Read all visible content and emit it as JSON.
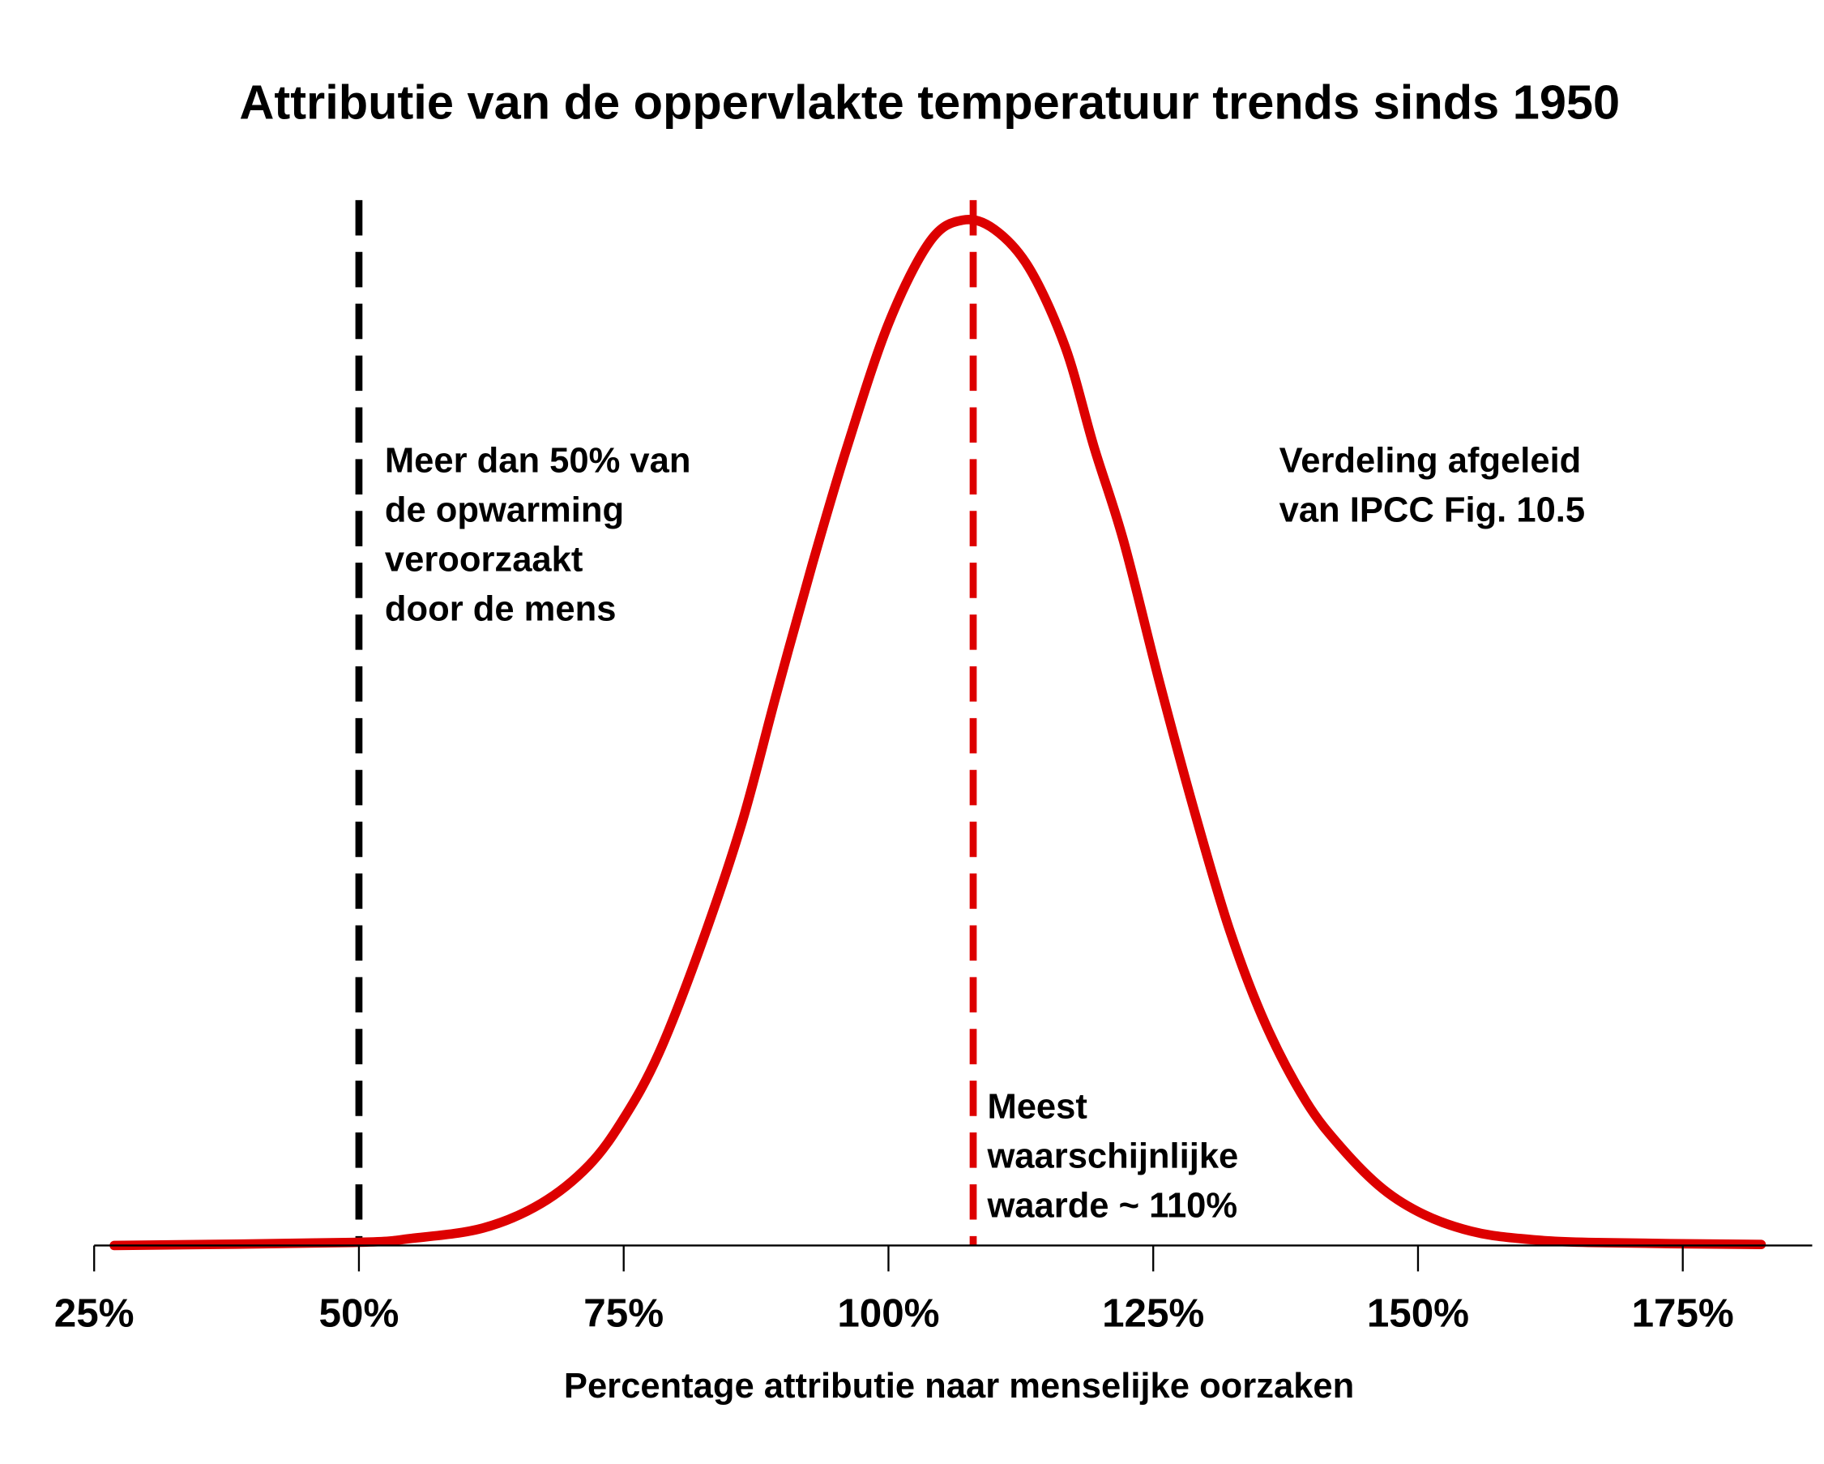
{
  "chart_data": {
    "type": "line",
    "title": "Attributie van de oppervlakte temperatuur trends sinds 1950",
    "xlabel": "Percentage attributie naar menselijke oorzaken",
    "ylabel": "",
    "xlim": [
      25,
      180
    ],
    "ylim": [
      0,
      1
    ],
    "grid": false,
    "x_ticks": [
      25,
      50,
      75,
      100,
      125,
      150,
      175
    ],
    "x_tick_labels": [
      "25%",
      "50%",
      "75%",
      "100%",
      "125%",
      "150%",
      "175%"
    ],
    "series": [
      {
        "name": "Verdeling",
        "color": "#dd0000",
        "x": [
          26.9,
          49.4,
          55,
          61.7,
          67.2,
          71.7,
          75,
          78.3,
          82.2,
          86.1,
          89.4,
          92.8,
          96.1,
          100,
          103.9,
          107,
          110,
          113.3,
          116.7,
          119.4,
          122.2,
          125.6,
          128.9,
          132.2,
          135.6,
          139.4,
          142.8,
          146.7,
          150.6,
          155,
          159.4,
          166.1,
          182.4
        ],
        "y": [
          0.0,
          0.003,
          0.007,
          0.017,
          0.041,
          0.078,
          0.124,
          0.187,
          0.29,
          0.41,
          0.537,
          0.664,
          0.779,
          0.899,
          0.979,
          1.0,
          0.991,
          0.953,
          0.876,
          0.779,
          0.687,
          0.549,
          0.423,
          0.308,
          0.216,
          0.141,
          0.095,
          0.055,
          0.03,
          0.014,
          0.007,
          0.003,
          0.001
        ]
      }
    ],
    "vlines": [
      {
        "name": "threshold-50",
        "x": 50,
        "color": "#000000"
      },
      {
        "name": "most-likely",
        "x": 108,
        "color": "#dd0000"
      }
    ],
    "annotations": {
      "threshold": [
        "Meer dan 50% van",
        "de opwarming",
        "veroorzaakt",
        "door de mens"
      ],
      "source": [
        "Verdeling afgeleid",
        "van IPCC Fig. 10.5"
      ],
      "most_likely": [
        "Meest",
        "waarschijnlijke",
        "waarde ~ 110%"
      ]
    }
  }
}
